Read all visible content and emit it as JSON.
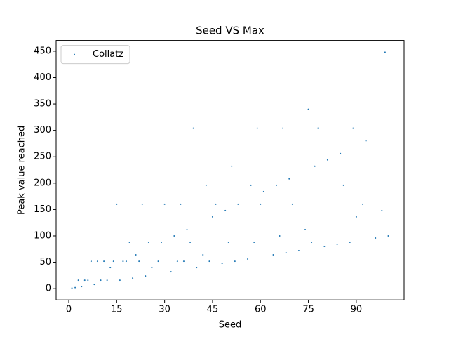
{
  "chart_data": {
    "type": "scatter",
    "title": "Seed VS Max",
    "x_label": "Seed",
    "y_label": "Peak value reached",
    "series": [
      {
        "name": "Collatz",
        "color": "#1f77b4",
        "x": [
          1,
          2,
          3,
          4,
          5,
          6,
          7,
          8,
          9,
          10,
          11,
          12,
          13,
          14,
          15,
          16,
          17,
          18,
          19,
          20,
          21,
          22,
          23,
          24,
          25,
          26,
          28,
          29,
          30,
          32,
          33,
          34,
          35,
          36,
          37,
          38,
          39,
          40,
          42,
          43,
          44,
          45,
          46,
          48,
          49,
          50,
          51,
          52,
          53,
          56,
          57,
          58,
          59,
          60,
          61,
          64,
          65,
          66,
          67,
          68,
          69,
          70,
          72,
          74,
          75,
          76,
          77,
          78,
          80,
          81,
          84,
          85,
          86,
          88,
          89,
          90,
          92,
          93,
          96,
          98,
          99,
          100
        ],
        "values": [
          1,
          2,
          16,
          4,
          16,
          16,
          52,
          8,
          52,
          16,
          52,
          16,
          40,
          52,
          160,
          16,
          52,
          52,
          88,
          20,
          64,
          52,
          160,
          24,
          88,
          40,
          52,
          88,
          160,
          32,
          100,
          52,
          160,
          52,
          112,
          88,
          304,
          40,
          64,
          196,
          52,
          136,
          160,
          48,
          148,
          88,
          232,
          52,
          160,
          56,
          196,
          88,
          304,
          160,
          184,
          64,
          196,
          100,
          304,
          68,
          208,
          160,
          72,
          112,
          340,
          88,
          232,
          304,
          80,
          244,
          84,
          256,
          196,
          88,
          304,
          136,
          160,
          280,
          96,
          148,
          448,
          100
        ]
      }
    ],
    "xlim": [
      -3.95,
      104.95
    ],
    "ylim": [
      -21.35,
      470.35
    ],
    "xticks": [
      0,
      15,
      30,
      45,
      60,
      75,
      90
    ],
    "yticks": [
      0,
      50,
      100,
      150,
      200,
      250,
      300,
      350,
      400,
      450
    ],
    "legend": "upper left"
  }
}
